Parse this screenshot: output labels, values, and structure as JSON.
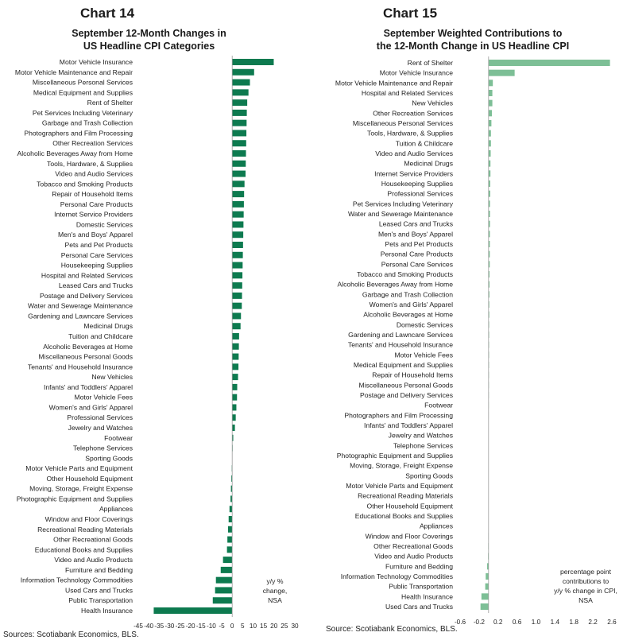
{
  "chart14": {
    "number": "Chart 14",
    "title_line1": "September 12-Month Changes in",
    "title_line2": "US Headline CPI Categories",
    "note_lines": [
      "y/y %",
      "change,",
      "NSA"
    ],
    "source": "Sources: Scotiabank Economics, BLS."
  },
  "chart15": {
    "number": "Chart 15",
    "title_line1": "September Weighted Contributions to",
    "title_line2": "the 12-Month Change in US Headline CPI",
    "note_lines": [
      "percentage point",
      "contributions to",
      "y/y % change in CPI,",
      "NSA"
    ],
    "source": "Source: Scotiabank Economics, BLS."
  },
  "chart_data": [
    {
      "type": "bar",
      "orientation": "horizontal",
      "title": "September 12-Month Changes in US Headline CPI Categories",
      "xlabel": "y/y % change, NSA",
      "xlim": [
        -45,
        30
      ],
      "xticks": [
        "-45",
        "-40",
        "-35",
        "-30",
        "-25",
        "-20",
        "-15",
        "-10",
        "-5",
        "0",
        "5",
        "10",
        "15",
        "20",
        "25",
        "30"
      ],
      "color": "#0d7a4f",
      "categories": [
        "Motor Vehicle Insurance",
        "Motor Vehicle Maintenance and Repair",
        "Miscellaneous Personal Services",
        "Medical Equipment and Supplies",
        "Rent of Shelter",
        "Pet Services Including Veterinary",
        "Garbage and Trash Collection",
        "Photographers and Film Processing",
        "Other Recreation Services",
        "Alcoholic Beverages Away from Home",
        "Tools, Hardware, & Supplies",
        "Video and Audio Services",
        "Tobacco and Smoking Products",
        "Repair of Household Items",
        "Personal Care Products",
        "Internet Service Providers",
        "Domestic Services",
        "Men's and Boys' Apparel",
        "Pets and Pet Products",
        "Personal Care Services",
        "Housekeeping Supplies",
        "Hospital and Related Services",
        "Leased Cars and Trucks",
        "Postage and Delivery Services",
        "Water and Sewerage Maintenance",
        "Gardening and Lawncare Services",
        "Medicinal Drugs",
        "Tuition and Childcare",
        "Alcoholic Beverages at Home",
        "Miscellaneous Personal Goods",
        "Tenants' and Household Insurance",
        "New Vehicles",
        "Infants' and Toddlers' Apparel",
        "Motor Vehicle Fees",
        "Women's and Girls' Apparel",
        "Professional Services",
        "Jewelry and Watches",
        "Footwear",
        "Telephone Services",
        "Sporting Goods",
        "Motor Vehicle Parts and Equipment",
        "Other Household Equipment",
        "Moving, Storage, Freight Expense",
        "Photographic Equipment and Supplies",
        "Appliances",
        "Window and Floor Coverings",
        "Recreational Reading Materials",
        "Other Recreational Goods",
        "Educational Books and Supplies",
        "Video and Audio Products",
        "Furniture and Bedding",
        "Information Technology Commodities",
        "Used Cars and Trucks",
        "Public Transportation",
        "Health Insurance"
      ],
      "values": [
        19.9,
        10.5,
        8.5,
        7.8,
        7.2,
        7.0,
        6.9,
        6.8,
        6.7,
        6.6,
        6.5,
        6.4,
        5.9,
        5.7,
        5.6,
        5.5,
        5.4,
        5.3,
        5.2,
        5.1,
        5.0,
        4.9,
        4.8,
        4.7,
        4.6,
        4.2,
        4.0,
        3.3,
        3.2,
        3.1,
        3.0,
        2.8,
        2.4,
        2.3,
        2.0,
        1.7,
        1.3,
        0.5,
        0.2,
        0.1,
        -0.2,
        -0.4,
        -0.6,
        -0.8,
        -1.3,
        -1.7,
        -2.0,
        -2.3,
        -2.5,
        -4.4,
        -5.5,
        -7.8,
        -8.2,
        -9.3,
        -37.6
      ]
    },
    {
      "type": "bar",
      "orientation": "horizontal",
      "title": "September Weighted Contributions to the 12-Month Change in US Headline CPI",
      "xlabel": "percentage point contributions to y/y % change in CPI, NSA",
      "xlim": [
        -0.6,
        2.6
      ],
      "xticks": [
        "-0.6",
        "-0.2",
        "0.2",
        "0.6",
        "1.0",
        "1.4",
        "1.8",
        "2.2",
        "2.6"
      ],
      "color": "#7dbf96",
      "categories": [
        "Rent of Shelter",
        "Motor Vehicle Insurance",
        "Motor Vehicle Maintenance and Repair",
        "Hospital and Related Services",
        "New Vehicles",
        "Other Recreation Services",
        "Miscellaneous Personal Services",
        "Tools, Hardware, & Supplies",
        "Tuition & Childcare",
        "Video and Audio Services",
        "Medicinal Drugs",
        "Internet Service Providers",
        "Housekeeping Supplies",
        "Professional Services",
        "Pet Services Including Veterinary",
        "Water and Sewerage Maintenance",
        "Leased Cars and Trucks",
        "Men's and Boys' Apparel",
        "Pets and Pet Products",
        "Personal Care Products",
        "Personal Care Services",
        "Tobacco and Smoking Products",
        "Alcoholic Beverages Away from Home",
        "Garbage and Trash Collection",
        "Women's and Girls' Apparel",
        "Alcoholic Beverages at Home",
        "Domestic Services",
        "Gardening and Lawncare Services",
        "Tenants' and Household Insurance",
        "Motor Vehicle Fees",
        "Medical Equipment and Supplies",
        "Repair of Household Items",
        "Miscellaneous Personal Goods",
        "Postage and Delivery Services",
        "Footwear",
        "Photographers and Film Processing",
        "Infants' and Toddlers' Apparel",
        "Jewelry and Watches",
        "Telephone Services",
        "Photographic Equipment and Supplies",
        "Moving, Storage, Freight Expense",
        "Sporting Goods",
        "Motor Vehicle Parts and Equipment",
        "Recreational Reading Materials",
        "Other Household Equipment",
        "Educational Books and Supplies",
        "Appliances",
        "Window and Floor Coverings",
        "Other Recreational Goods",
        "Video and Audio Products",
        "Furniture and Bedding",
        "Information Technology Commodities",
        "Public Transportation",
        "Health Insurance",
        "Used Cars and Trucks"
      ],
      "values": [
        2.56,
        0.55,
        0.09,
        0.08,
        0.08,
        0.07,
        0.06,
        0.05,
        0.05,
        0.045,
        0.04,
        0.04,
        0.035,
        0.035,
        0.03,
        0.03,
        0.03,
        0.028,
        0.027,
        0.026,
        0.025,
        0.02,
        0.02,
        0.018,
        0.015,
        0.015,
        0.012,
        0.012,
        0.01,
        0.01,
        0.009,
        0.008,
        0.007,
        0.006,
        0.005,
        0.004,
        0.003,
        0.002,
        0.002,
        0.0,
        -0.001,
        -0.001,
        -0.002,
        -0.002,
        -0.003,
        -0.004,
        -0.005,
        -0.006,
        -0.007,
        -0.01,
        -0.03,
        -0.06,
        -0.07,
        -0.15,
        -0.17
      ]
    }
  ]
}
